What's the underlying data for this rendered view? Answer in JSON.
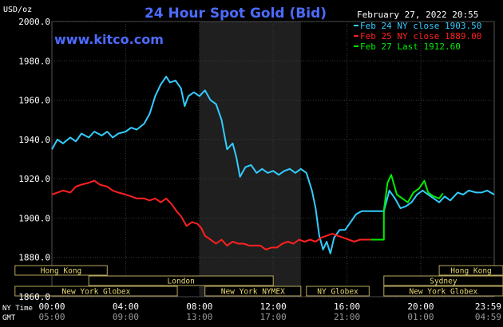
{
  "chart_data": {
    "type": "line",
    "title": "24 Hour Spot Gold (Bid)",
    "source": "www.kitco.com",
    "date_label": "February 27, 2022 20:55",
    "ylabel": "USD/oz",
    "ylim": [
      1860,
      2000
    ],
    "y_ticks": [
      "2000.0",
      "1980.0",
      "1960.0",
      "1940.0",
      "1920.0",
      "1900.0",
      "1880.0",
      "1860.0"
    ],
    "x_ticks_ny": [
      "00:00",
      "04:00",
      "08:00",
      "12:00",
      "16:00",
      "20:00",
      "23:59"
    ],
    "x_ticks_gmt": [
      "05:00",
      "09:00",
      "13:00",
      "17:00",
      "21:00",
      "01:00",
      "04:59"
    ],
    "row_label_ny": "NY Time",
    "row_label_gmt": "GMT",
    "legend_position": "top-right",
    "series": [
      {
        "name": "Feb 24 NY close 1903.50",
        "color": "#33ccff",
        "points": [
          [
            0,
            1935
          ],
          [
            0.3,
            1940
          ],
          [
            0.6,
            1938
          ],
          [
            1.0,
            1941
          ],
          [
            1.3,
            1939
          ],
          [
            1.6,
            1943
          ],
          [
            2.0,
            1941
          ],
          [
            2.3,
            1944
          ],
          [
            2.7,
            1942
          ],
          [
            3.0,
            1944
          ],
          [
            3.3,
            1941
          ],
          [
            3.6,
            1943
          ],
          [
            4.0,
            1944
          ],
          [
            4.3,
            1946
          ],
          [
            4.6,
            1945
          ],
          [
            5.0,
            1948
          ],
          [
            5.3,
            1953
          ],
          [
            5.6,
            1962
          ],
          [
            5.9,
            1968
          ],
          [
            6.2,
            1972
          ],
          [
            6.4,
            1969
          ],
          [
            6.7,
            1970
          ],
          [
            7.0,
            1966
          ],
          [
            7.2,
            1957
          ],
          [
            7.4,
            1962
          ],
          [
            7.7,
            1964
          ],
          [
            8.0,
            1962
          ],
          [
            8.3,
            1965
          ],
          [
            8.6,
            1960
          ],
          [
            8.9,
            1958
          ],
          [
            9.2,
            1950
          ],
          [
            9.5,
            1935
          ],
          [
            9.8,
            1938
          ],
          [
            10.0,
            1931
          ],
          [
            10.2,
            1921
          ],
          [
            10.5,
            1926
          ],
          [
            10.8,
            1927
          ],
          [
            11.1,
            1923
          ],
          [
            11.4,
            1925
          ],
          [
            11.7,
            1923
          ],
          [
            12.0,
            1924
          ],
          [
            12.3,
            1922
          ],
          [
            12.6,
            1924
          ],
          [
            12.9,
            1925
          ],
          [
            13.2,
            1923
          ],
          [
            13.5,
            1925
          ],
          [
            13.8,
            1923
          ],
          [
            14.1,
            1914
          ],
          [
            14.3,
            1905
          ],
          [
            14.5,
            1891
          ],
          [
            14.7,
            1884
          ],
          [
            14.9,
            1888
          ],
          [
            15.1,
            1882
          ],
          [
            15.3,
            1890
          ],
          [
            15.6,
            1894
          ],
          [
            15.9,
            1894
          ],
          [
            16.2,
            1898
          ],
          [
            16.5,
            1902
          ],
          [
            16.8,
            1903.5
          ],
          [
            17.2,
            1903.5
          ],
          [
            17.5,
            1903.5
          ],
          [
            17.8,
            1903.5
          ],
          [
            18.0,
            1903.5
          ],
          [
            18.3,
            1914
          ],
          [
            18.6,
            1910
          ],
          [
            18.9,
            1905
          ],
          [
            19.2,
            1906
          ],
          [
            19.5,
            1908
          ],
          [
            19.8,
            1912
          ],
          [
            20.1,
            1914
          ],
          [
            20.4,
            1912
          ],
          [
            20.7,
            1910
          ],
          [
            21.0,
            1908
          ],
          [
            21.3,
            1911
          ],
          [
            21.6,
            1909
          ],
          [
            22.0,
            1913
          ],
          [
            22.3,
            1912
          ],
          [
            22.6,
            1914
          ],
          [
            23.0,
            1913
          ],
          [
            23.3,
            1913
          ],
          [
            23.6,
            1914
          ],
          [
            23.98,
            1912
          ]
        ]
      },
      {
        "name": "Feb 25 NY close 1889.00",
        "color": "#ff2020",
        "points": [
          [
            0,
            1912
          ],
          [
            0.3,
            1913
          ],
          [
            0.6,
            1914
          ],
          [
            1.0,
            1913
          ],
          [
            1.3,
            1916
          ],
          [
            1.6,
            1917
          ],
          [
            2.0,
            1918
          ],
          [
            2.3,
            1919
          ],
          [
            2.6,
            1917
          ],
          [
            3.0,
            1916
          ],
          [
            3.3,
            1914
          ],
          [
            3.6,
            1913
          ],
          [
            4.0,
            1912
          ],
          [
            4.3,
            1911
          ],
          [
            4.6,
            1910
          ],
          [
            5.0,
            1910
          ],
          [
            5.3,
            1909
          ],
          [
            5.6,
            1910
          ],
          [
            5.9,
            1908
          ],
          [
            6.2,
            1910
          ],
          [
            6.5,
            1907
          ],
          [
            6.8,
            1903
          ],
          [
            7.0,
            1901
          ],
          [
            7.3,
            1896
          ],
          [
            7.6,
            1898
          ],
          [
            7.9,
            1897
          ],
          [
            8.1,
            1895
          ],
          [
            8.3,
            1891
          ],
          [
            8.6,
            1889
          ],
          [
            8.9,
            1887
          ],
          [
            9.2,
            1889
          ],
          [
            9.5,
            1886
          ],
          [
            9.8,
            1888
          ],
          [
            10.1,
            1887
          ],
          [
            10.4,
            1887
          ],
          [
            10.7,
            1886
          ],
          [
            11.0,
            1886
          ],
          [
            11.3,
            1886
          ],
          [
            11.6,
            1884
          ],
          [
            11.9,
            1885
          ],
          [
            12.2,
            1885
          ],
          [
            12.5,
            1887
          ],
          [
            12.8,
            1888
          ],
          [
            13.1,
            1887
          ],
          [
            13.4,
            1889
          ],
          [
            13.7,
            1888
          ],
          [
            14.0,
            1889
          ],
          [
            14.3,
            1888
          ],
          [
            14.6,
            1890
          ],
          [
            14.9,
            1891
          ],
          [
            15.2,
            1892
          ],
          [
            15.5,
            1891
          ],
          [
            15.8,
            1890
          ],
          [
            16.1,
            1889
          ],
          [
            16.4,
            1888
          ],
          [
            16.7,
            1889
          ],
          [
            17.0,
            1889
          ],
          [
            17.3,
            1889
          ]
        ]
      },
      {
        "name": "Feb 27 Last 1912.60",
        "color": "#00ee00",
        "points": [
          [
            17.3,
            1889
          ],
          [
            17.6,
            1889
          ],
          [
            18.0,
            1889
          ],
          [
            18.0,
            1904
          ],
          [
            18.2,
            1918
          ],
          [
            18.4,
            1922
          ],
          [
            18.7,
            1912
          ],
          [
            19.0,
            1910
          ],
          [
            19.3,
            1908
          ],
          [
            19.6,
            1913
          ],
          [
            19.9,
            1915
          ],
          [
            20.2,
            1919
          ],
          [
            20.4,
            1913
          ],
          [
            20.7,
            1911
          ],
          [
            21.0,
            1910
          ],
          [
            21.2,
            1912.6
          ]
        ]
      }
    ],
    "sessions": [
      {
        "label": "Hong Kong",
        "start": -2.0,
        "end": 3.0,
        "row": 0
      },
      {
        "label": "London",
        "start": 2.0,
        "end": 12.0,
        "row": 1
      },
      {
        "label": "New York Globex",
        "start": -2.0,
        "end": 6.8,
        "row": 2
      },
      {
        "label": "New York NYMEX",
        "start": 8.3,
        "end": 13.5,
        "row": 2
      },
      {
        "label": "NY Globex",
        "start": 13.8,
        "end": 17.2,
        "row": 2
      },
      {
        "label": "Hong Kong",
        "start": 21.0,
        "end": 26.0,
        "row": 0
      },
      {
        "label": "Sydney",
        "start": 18.0,
        "end": 26.0,
        "row": 1
      },
      {
        "label": "New York Globex",
        "start": 18.0,
        "end": 26.0,
        "row": 2
      }
    ],
    "shaded_range": [
      8.0,
      13.5
    ]
  }
}
